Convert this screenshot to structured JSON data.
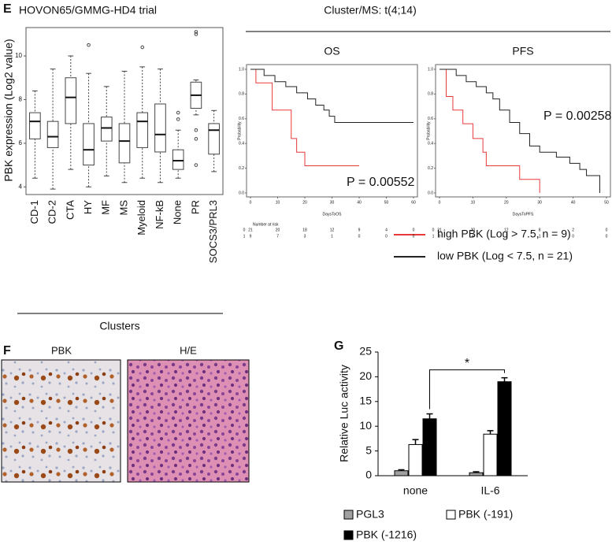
{
  "chart_data": [
    {
      "type": "box",
      "panel_label": "E",
      "title": "HOVON65/GMMG-HD4 trial",
      "ylabel": "PBK expression (Log2 value)",
      "xlabel": "Clusters",
      "categories": [
        "CD-1",
        "CD-2",
        "CTA",
        "HY",
        "MF",
        "MS",
        "Myeloid",
        "NF-kB",
        "None",
        "PR",
        "SOCS3/PRL3"
      ],
      "min": [
        4.4,
        3.9,
        4.8,
        4.0,
        4.5,
        4.2,
        4.4,
        4.2,
        4.4,
        7.3,
        4.7
      ],
      "q1": [
        6.2,
        5.8,
        6.9,
        5.0,
        6.1,
        5.1,
        5.8,
        5.6,
        4.8,
        7.6,
        5.5
      ],
      "median": [
        7.0,
        6.3,
        8.1,
        5.7,
        6.7,
        6.1,
        7.0,
        6.4,
        5.2,
        8.2,
        6.6
      ],
      "q3": [
        7.4,
        7.0,
        9.0,
        6.9,
        7.2,
        6.9,
        7.4,
        7.8,
        5.7,
        8.8,
        6.9
      ],
      "max": [
        8.4,
        9.4,
        10.0,
        9.2,
        8.6,
        9.3,
        9.5,
        9.4,
        6.6,
        8.9,
        7.5
      ],
      "outliers": [
        [],
        [],
        [],
        [
          10.5
        ],
        [],
        [],
        [
          10.4
        ],
        [],
        [
          7.1,
          7.4
        ],
        [
          11.1,
          11.0,
          6.6,
          6.2,
          5.0
        ],
        []
      ],
      "color": "#ffffff",
      "ylim": [
        3.65,
        11.3
      ],
      "yticks": [
        4,
        6,
        8,
        10
      ]
    },
    {
      "type": "km",
      "header": "Cluster/MS: t(4;14)",
      "title": "OS",
      "xlabel": "DaysToOS",
      "ylabel": "Probability",
      "xlim": [
        0,
        60
      ],
      "xticks": [
        0,
        10,
        20,
        30,
        40,
        50,
        60
      ],
      "ylim": [
        0,
        1
      ],
      "yticks": [
        {
          "value": 0,
          "label": "0.0"
        },
        {
          "value": 0.2,
          "label": "0.2"
        },
        {
          "value": 0.4,
          "label": "0.4"
        },
        {
          "value": 0.6,
          "label": "0.6"
        },
        {
          "value": 0.8,
          "label": "0.8"
        },
        {
          "value": 1,
          "label": "1.0"
        }
      ],
      "series": [
        {
          "name": "high PBK (Log > 7.5, n = 9)",
          "color": "#e8393a",
          "x": [
            0,
            2,
            2,
            8,
            8,
            15,
            15,
            17,
            17,
            20,
            20,
            40
          ],
          "values": [
            1,
            1,
            0.89,
            0.89,
            0.67,
            0.67,
            0.44,
            0.44,
            0.33,
            0.33,
            0.22,
            0.22
          ]
        },
        {
          "name": "low PBK (Log < 7.5, n = 21)",
          "color": "#222222",
          "x": [
            0,
            5,
            5,
            9,
            9,
            13,
            13,
            17,
            17,
            21,
            21,
            24,
            24,
            27,
            27,
            29,
            29,
            31,
            31,
            60
          ],
          "values": [
            1,
            1,
            0.95,
            0.95,
            0.9,
            0.9,
            0.86,
            0.86,
            0.81,
            0.81,
            0.76,
            0.76,
            0.71,
            0.71,
            0.67,
            0.67,
            0.62,
            0.62,
            0.57,
            0.57
          ]
        }
      ],
      "annotation": "P = 0.00552",
      "risk_title": "Number at risk",
      "risk_groups": [
        0,
        1
      ],
      "risk_table": [
        [
          21,
          20,
          18,
          12,
          9,
          4,
          0
        ],
        [
          9,
          7,
          3,
          1,
          0,
          0,
          0
        ]
      ]
    },
    {
      "type": "km",
      "title": "PFS",
      "xlabel": "DaysToPFS",
      "ylabel": "Probability",
      "xlim": [
        0,
        50
      ],
      "xticks": [
        0,
        10,
        20,
        30,
        40,
        50
      ],
      "ylim": [
        0,
        1
      ],
      "yticks": [
        {
          "value": 0,
          "label": "0.0"
        },
        {
          "value": 0.2,
          "label": "0.2"
        },
        {
          "value": 0.4,
          "label": "0.4"
        },
        {
          "value": 0.6,
          "label": "0.6"
        },
        {
          "value": 0.8,
          "label": "0.8"
        },
        {
          "value": 1,
          "label": "1.0"
        }
      ],
      "series": [
        {
          "color": "#e8393a",
          "x": [
            0,
            2,
            2,
            4,
            4,
            7,
            7,
            10,
            10,
            13,
            13,
            14,
            14,
            24,
            24,
            30,
            30
          ],
          "values": [
            1,
            1,
            0.78,
            0.78,
            0.67,
            0.67,
            0.56,
            0.56,
            0.44,
            0.44,
            0.33,
            0.33,
            0.22,
            0.22,
            0.11,
            0.11,
            0
          ]
        },
        {
          "color": "#222222",
          "x": [
            0,
            5,
            5,
            8,
            8,
            11,
            11,
            14,
            14,
            16,
            16,
            18,
            18,
            21,
            21,
            24,
            24,
            27,
            27,
            30,
            30,
            35,
            35,
            39,
            39,
            42,
            42,
            44,
            44,
            48,
            48
          ],
          "values": [
            1,
            1,
            0.95,
            0.95,
            0.9,
            0.9,
            0.86,
            0.86,
            0.81,
            0.81,
            0.76,
            0.76,
            0.67,
            0.67,
            0.57,
            0.57,
            0.48,
            0.48,
            0.38,
            0.38,
            0.33,
            0.33,
            0.29,
            0.29,
            0.24,
            0.24,
            0.19,
            0.19,
            0.14,
            0.14,
            0
          ]
        }
      ],
      "annotation": "P = 0.00258",
      "risk_groups": [
        0,
        1
      ],
      "risk_table": [
        [
          21,
          20,
          12,
          8,
          2,
          0
        ],
        [
          9,
          4,
          2,
          1,
          0,
          0
        ]
      ]
    },
    {
      "type": "bar",
      "panel_label": "G",
      "ylabel": "Relative Luc activity",
      "categories": [
        "none",
        "IL-6"
      ],
      "series": [
        {
          "name": "PGL3",
          "color": "#a0a0a0",
          "values": [
            1.0,
            0.6
          ],
          "errors": [
            0.2,
            0.2
          ]
        },
        {
          "name": "PBK (-191)",
          "color": "#ffffff",
          "values": [
            6.3,
            8.4
          ],
          "errors": [
            1.0,
            0.7
          ]
        },
        {
          "name": "PBK (-1216)",
          "color": "#000000",
          "values": [
            11.5,
            19.0
          ],
          "errors": [
            1.0,
            0.8
          ]
        }
      ],
      "ylim": [
        0,
        25
      ],
      "yticks": [
        0,
        5,
        10,
        15,
        20,
        25
      ],
      "annotation": "*"
    }
  ],
  "figure": {
    "panel_label": "F",
    "images": [
      "PBK",
      "H/E"
    ]
  }
}
